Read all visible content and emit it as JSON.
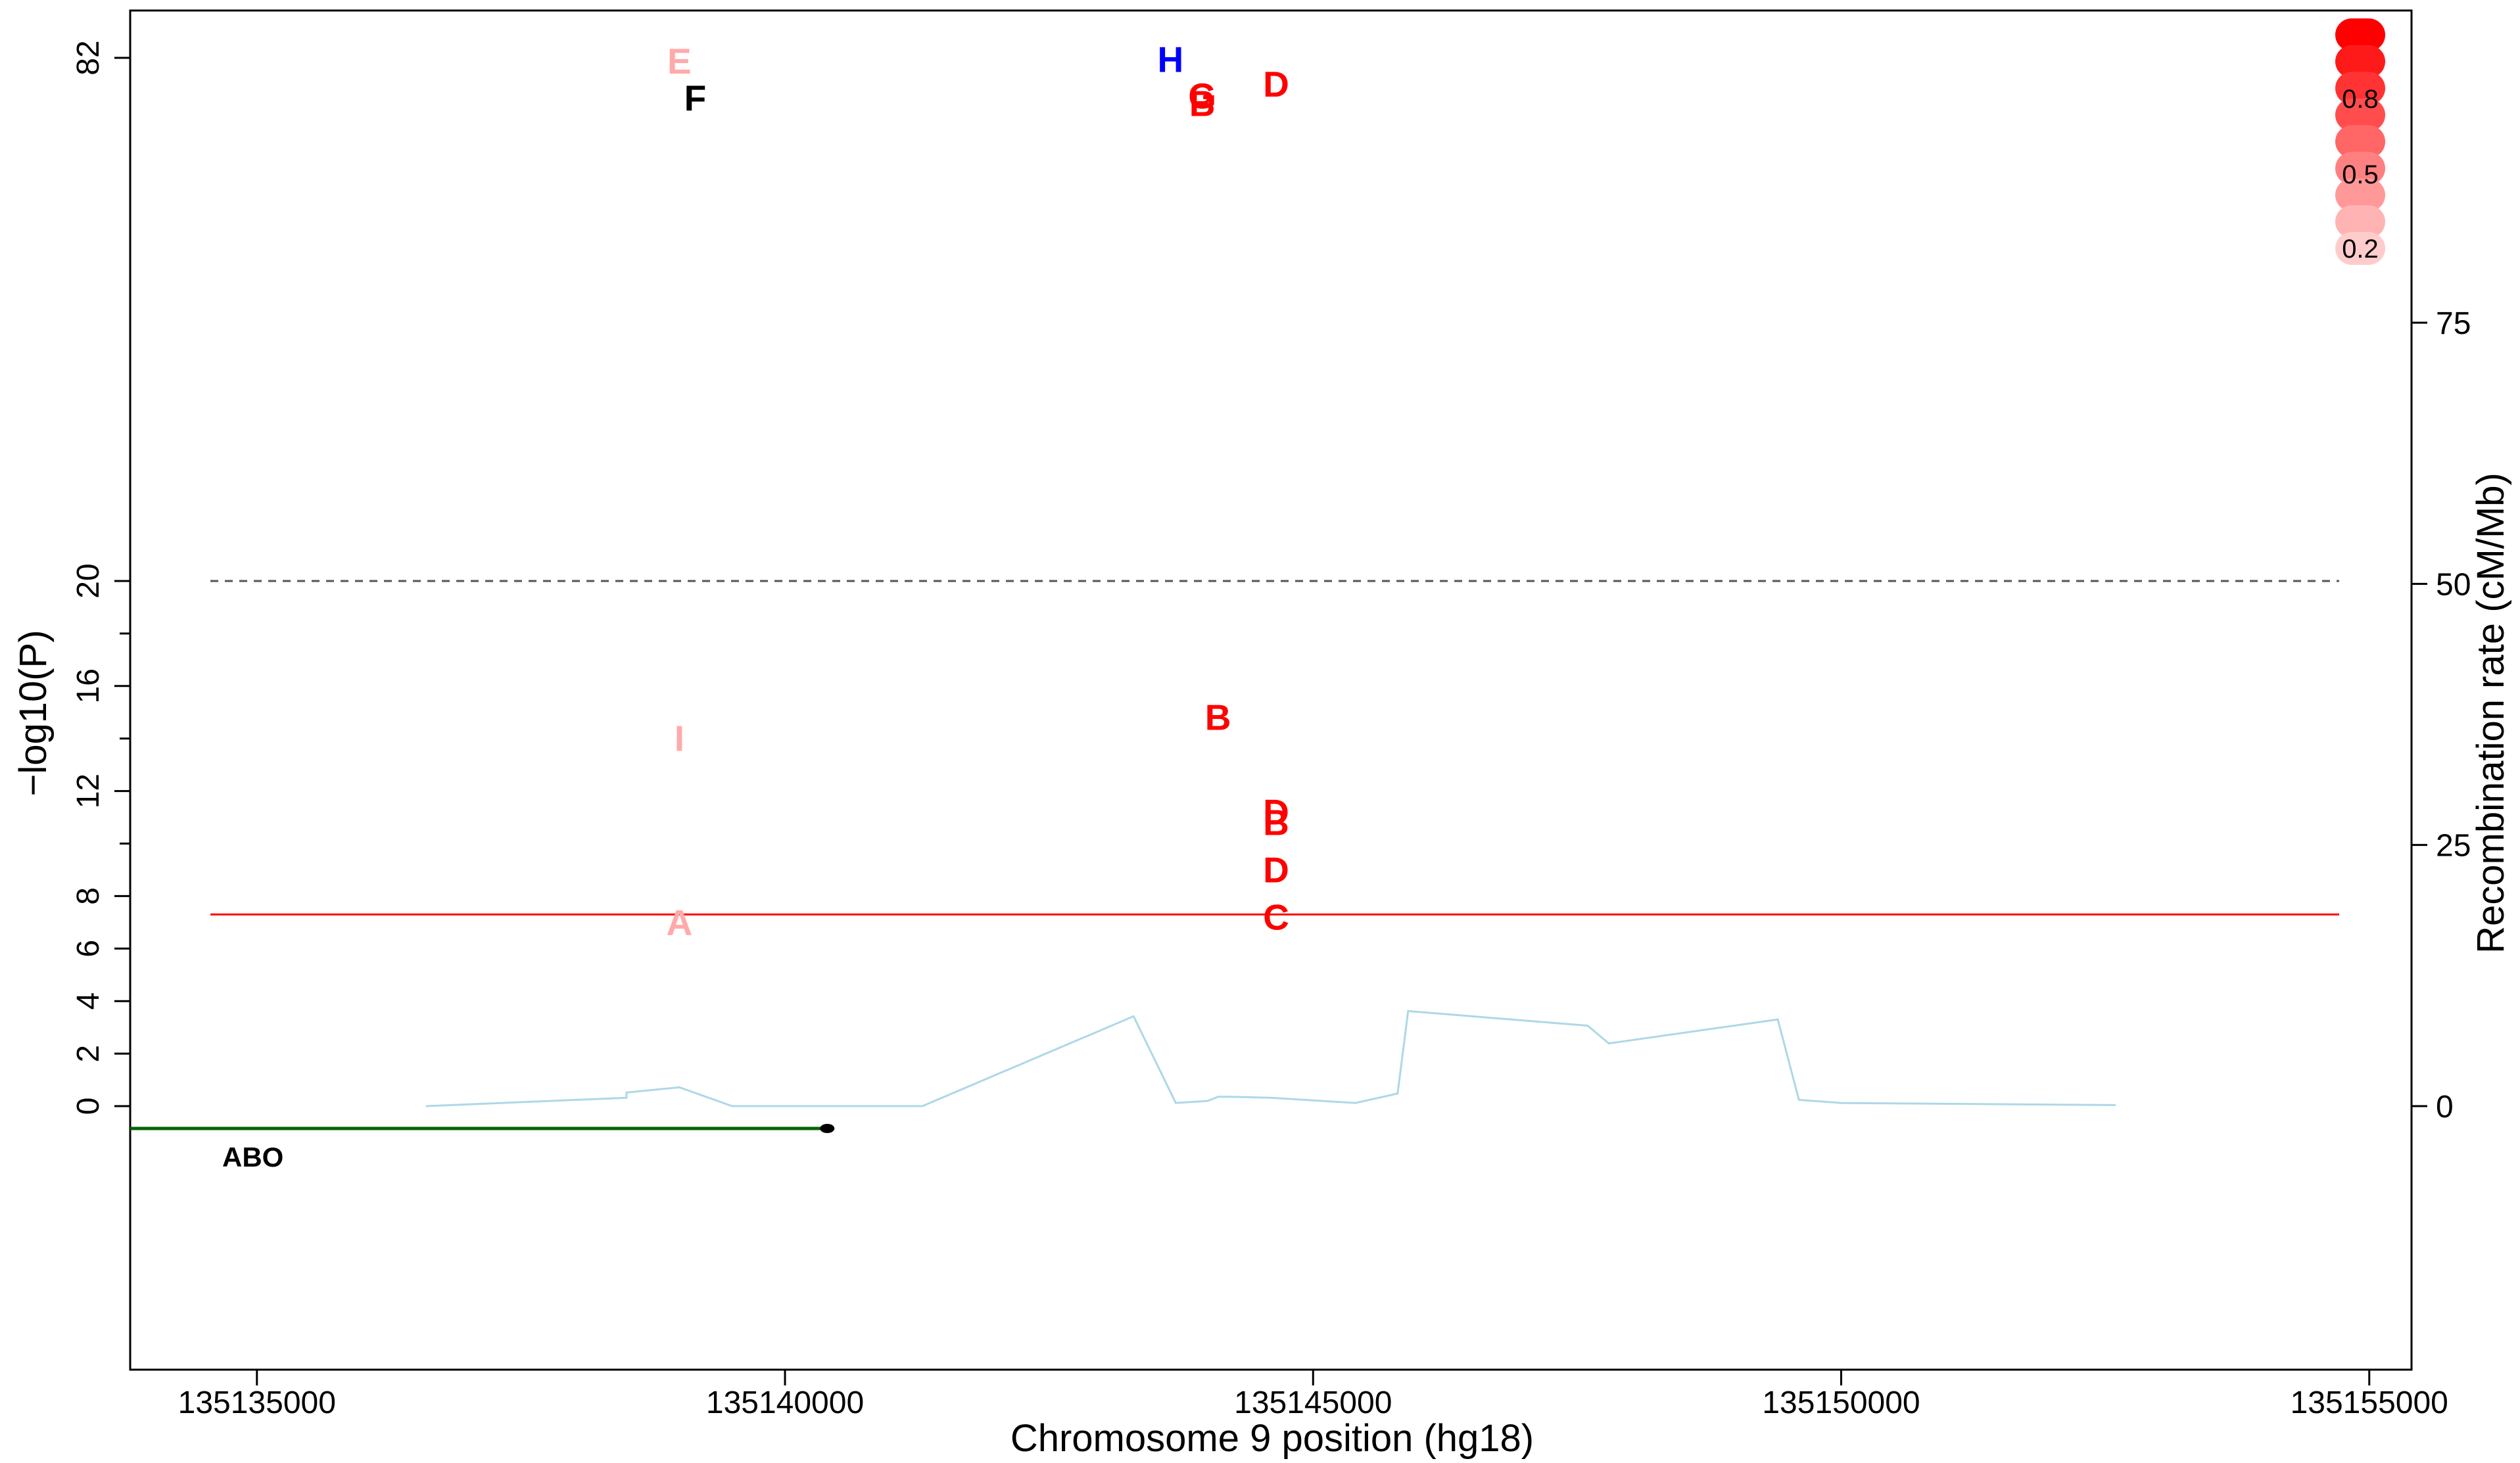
{
  "chart_data": {
    "type": "scatter",
    "title": "",
    "xlabel": "Chromosome 9 position (hg18)",
    "ylabel_left": "−log10(P)",
    "ylabel_right": "Recombination rate (cM/Mb)",
    "xlim": [
      133800,
      155400
    ],
    "x_ticks": [
      {
        "value": 135000,
        "label": "135135000"
      },
      {
        "value": 140000,
        "label": "135140000"
      },
      {
        "value": 145000,
        "label": "135145000"
      },
      {
        "value": 150000,
        "label": "135150000"
      },
      {
        "value": 155000,
        "label": "135155000"
      }
    ],
    "x_offset": 135000000,
    "left_ticks": [
      {
        "label": "0",
        "y": 0
      },
      {
        "label": "2",
        "y": 2
      },
      {
        "label": "4",
        "y": 4
      },
      {
        "label": "6",
        "y": 6
      },
      {
        "label": "8",
        "y": 8
      },
      {
        "label": "12",
        "y": 12
      },
      {
        "label": "16",
        "y": 16
      },
      {
        "label": "20",
        "y": 20
      },
      {
        "label": "82",
        "y": 82
      }
    ],
    "left_minor_ticks": [
      10,
      14,
      18
    ],
    "right_ticks": [
      0,
      25,
      50,
      75
    ],
    "right_ylim": [
      -25,
      105
    ],
    "significance_lines": [
      {
        "name": "genome-wide",
        "y": 7.3,
        "color": "#ff0000",
        "style": "solid"
      },
      {
        "name": "break",
        "y": 20,
        "color": "#555555",
        "style": "dashed"
      }
    ],
    "points": [
      {
        "label": "E",
        "x": 139000,
        "y": 81.6,
        "color": "#ffaaaa"
      },
      {
        "label": "H",
        "x": 143650,
        "y": 81.8,
        "color": "#0000ff"
      },
      {
        "label": "D",
        "x": 144650,
        "y": 78.9,
        "color": "#ff0000"
      },
      {
        "label": "G",
        "x": 143950,
        "y": 77.5,
        "color": "#ff0000"
      },
      {
        "label": "F",
        "x": 139150,
        "y": 77.2,
        "color": "#000000"
      },
      {
        "label": "B",
        "x": 143950,
        "y": 76.6,
        "color": "#ff0000"
      },
      {
        "label": "B",
        "x": 144100,
        "y": 14.8,
        "color": "#ff0000"
      },
      {
        "label": "I",
        "x": 139000,
        "y": 14.0,
        "color": "#ffaaaa"
      },
      {
        "label": "D",
        "x": 144650,
        "y": 11.2,
        "color": "#ff0000"
      },
      {
        "label": "B",
        "x": 144650,
        "y": 10.8,
        "color": "#ff0000"
      },
      {
        "label": "D",
        "x": 144650,
        "y": 9.0,
        "color": "#ff0000"
      },
      {
        "label": "C",
        "x": 144650,
        "y": 7.2,
        "color": "#ff0000"
      },
      {
        "label": "A",
        "x": 139000,
        "y": 7.0,
        "color": "#ffaaaa"
      }
    ],
    "recombination": {
      "color": "#add8e6",
      "x": [
        136600,
        138500,
        138500,
        139000,
        139500,
        141300,
        143300,
        143700,
        144000,
        144100,
        144200,
        144600,
        145400,
        145800,
        145900,
        147600,
        147800,
        149400,
        149600,
        150000,
        152600
      ],
      "y": [
        0,
        0.8,
        1.3,
        1.8,
        0,
        0,
        8.6,
        0.3,
        0.5,
        0.9,
        0.9,
        0.8,
        0.3,
        1.2,
        9.1,
        7.7,
        6.0,
        8.3,
        0.6,
        0.3,
        0.1
      ]
    },
    "genes": [
      {
        "name": "ABO",
        "start": 133800,
        "end": 140400,
        "color": "#006400"
      }
    ],
    "legend": {
      "position": "top-right",
      "labels": [
        "0.8",
        "0.5",
        "0.2"
      ],
      "colors": [
        "#ff0000",
        "#ff1a1a",
        "#ff3333",
        "#ff4d4d",
        "#ff6666",
        "#ff8080",
        "#ff9999",
        "#ffb3b3",
        "#ffcccc"
      ]
    }
  }
}
